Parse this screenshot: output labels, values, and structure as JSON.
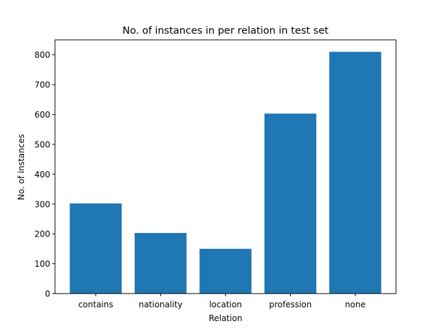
{
  "chart_data": {
    "type": "bar",
    "title": "No. of instances in per relation in test set",
    "xlabel": "Relation",
    "ylabel": "No. of instances",
    "categories": [
      "contains",
      "nationality",
      "location",
      "profession",
      "none"
    ],
    "values": [
      302,
      203,
      150,
      603,
      810
    ],
    "ylim": [
      0,
      850
    ],
    "yticks": [
      0,
      100,
      200,
      300,
      400,
      500,
      600,
      700,
      800
    ],
    "grid": false,
    "legend": "none",
    "bar_color": "#1f77b4"
  }
}
